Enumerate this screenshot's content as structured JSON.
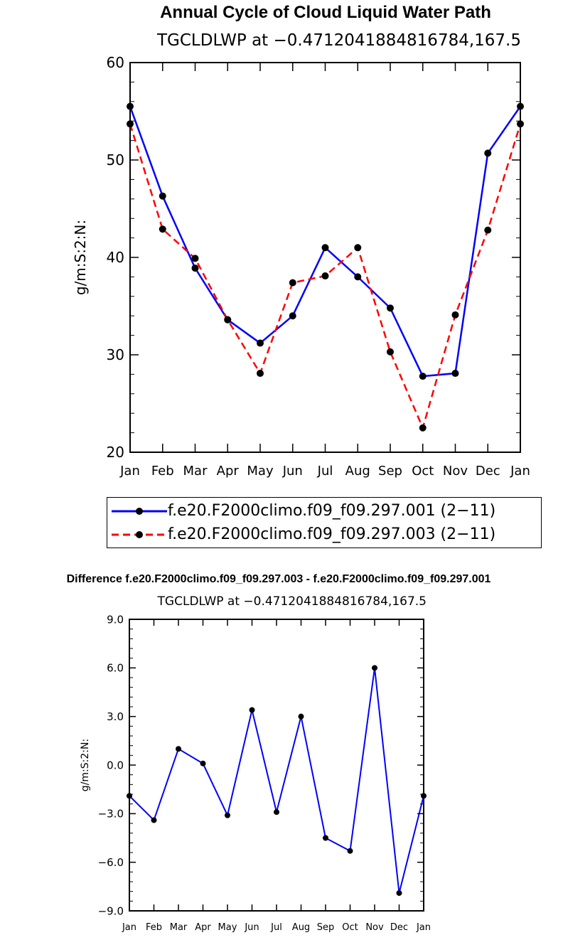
{
  "chart_data": [
    {
      "type": "line",
      "title": "Annual Cycle of Cloud Liquid Water Path",
      "subtitle": "TGCLDLWP at −0.4712041884816784,167.5",
      "xlabel": "",
      "ylabel": "g/m:S:2:N:",
      "ylim": [
        20,
        60
      ],
      "yticks": [
        20,
        30,
        40,
        50,
        60
      ],
      "ytick_labels": [
        "20",
        "30",
        "40",
        "50",
        "60"
      ],
      "categories": [
        "Jan",
        "Feb",
        "Mar",
        "Apr",
        "May",
        "Jun",
        "Jul",
        "Aug",
        "Sep",
        "Oct",
        "Nov",
        "Dec",
        "Jan"
      ],
      "series": [
        {
          "name": "f.e20.F2000climo.f09_f09.297.001 (2−11)",
          "color": "#0000ff",
          "style": "solid",
          "values": [
            55.5,
            46.3,
            38.9,
            33.6,
            31.2,
            34.0,
            41.0,
            38.0,
            34.8,
            27.8,
            28.1,
            50.7,
            55.5
          ]
        },
        {
          "name": "f.e20.F2000climo.f09_f09.297.003 (2−11)",
          "color": "#ff0000",
          "style": "dashed",
          "values": [
            53.7,
            42.9,
            39.9,
            33.6,
            28.1,
            37.4,
            38.1,
            41.0,
            30.3,
            22.5,
            34.1,
            42.8,
            53.7
          ]
        }
      ],
      "legend": "bottom"
    },
    {
      "type": "line",
      "title": "Difference f.e20.F2000climo.f09_f09.297.003 - f.e20.F2000climo.f09_f09.297.001",
      "subtitle": "TGCLDLWP at −0.4712041884816784,167.5",
      "xlabel": "",
      "ylabel": "g/m:S:2:N:",
      "ylim": [
        -9,
        9
      ],
      "yticks": [
        -9,
        -6,
        -3,
        0,
        3,
        6,
        9
      ],
      "ytick_labels": [
        "−9.0",
        "−6.0",
        "−3.0",
        "0.0",
        "3.0",
        "6.0",
        "9.0"
      ],
      "categories": [
        "Jan",
        "Feb",
        "Mar",
        "Apr",
        "May",
        "Jun",
        "Jul",
        "Aug",
        "Sep",
        "Oct",
        "Nov",
        "Dec",
        "Jan"
      ],
      "series": [
        {
          "name": "difference",
          "color": "#0000ff",
          "style": "solid",
          "values": [
            -1.9,
            -3.4,
            1.0,
            0.1,
            -3.1,
            3.4,
            -2.9,
            3.0,
            -4.5,
            -5.3,
            6.0,
            -7.9,
            -1.9
          ]
        }
      ]
    }
  ]
}
